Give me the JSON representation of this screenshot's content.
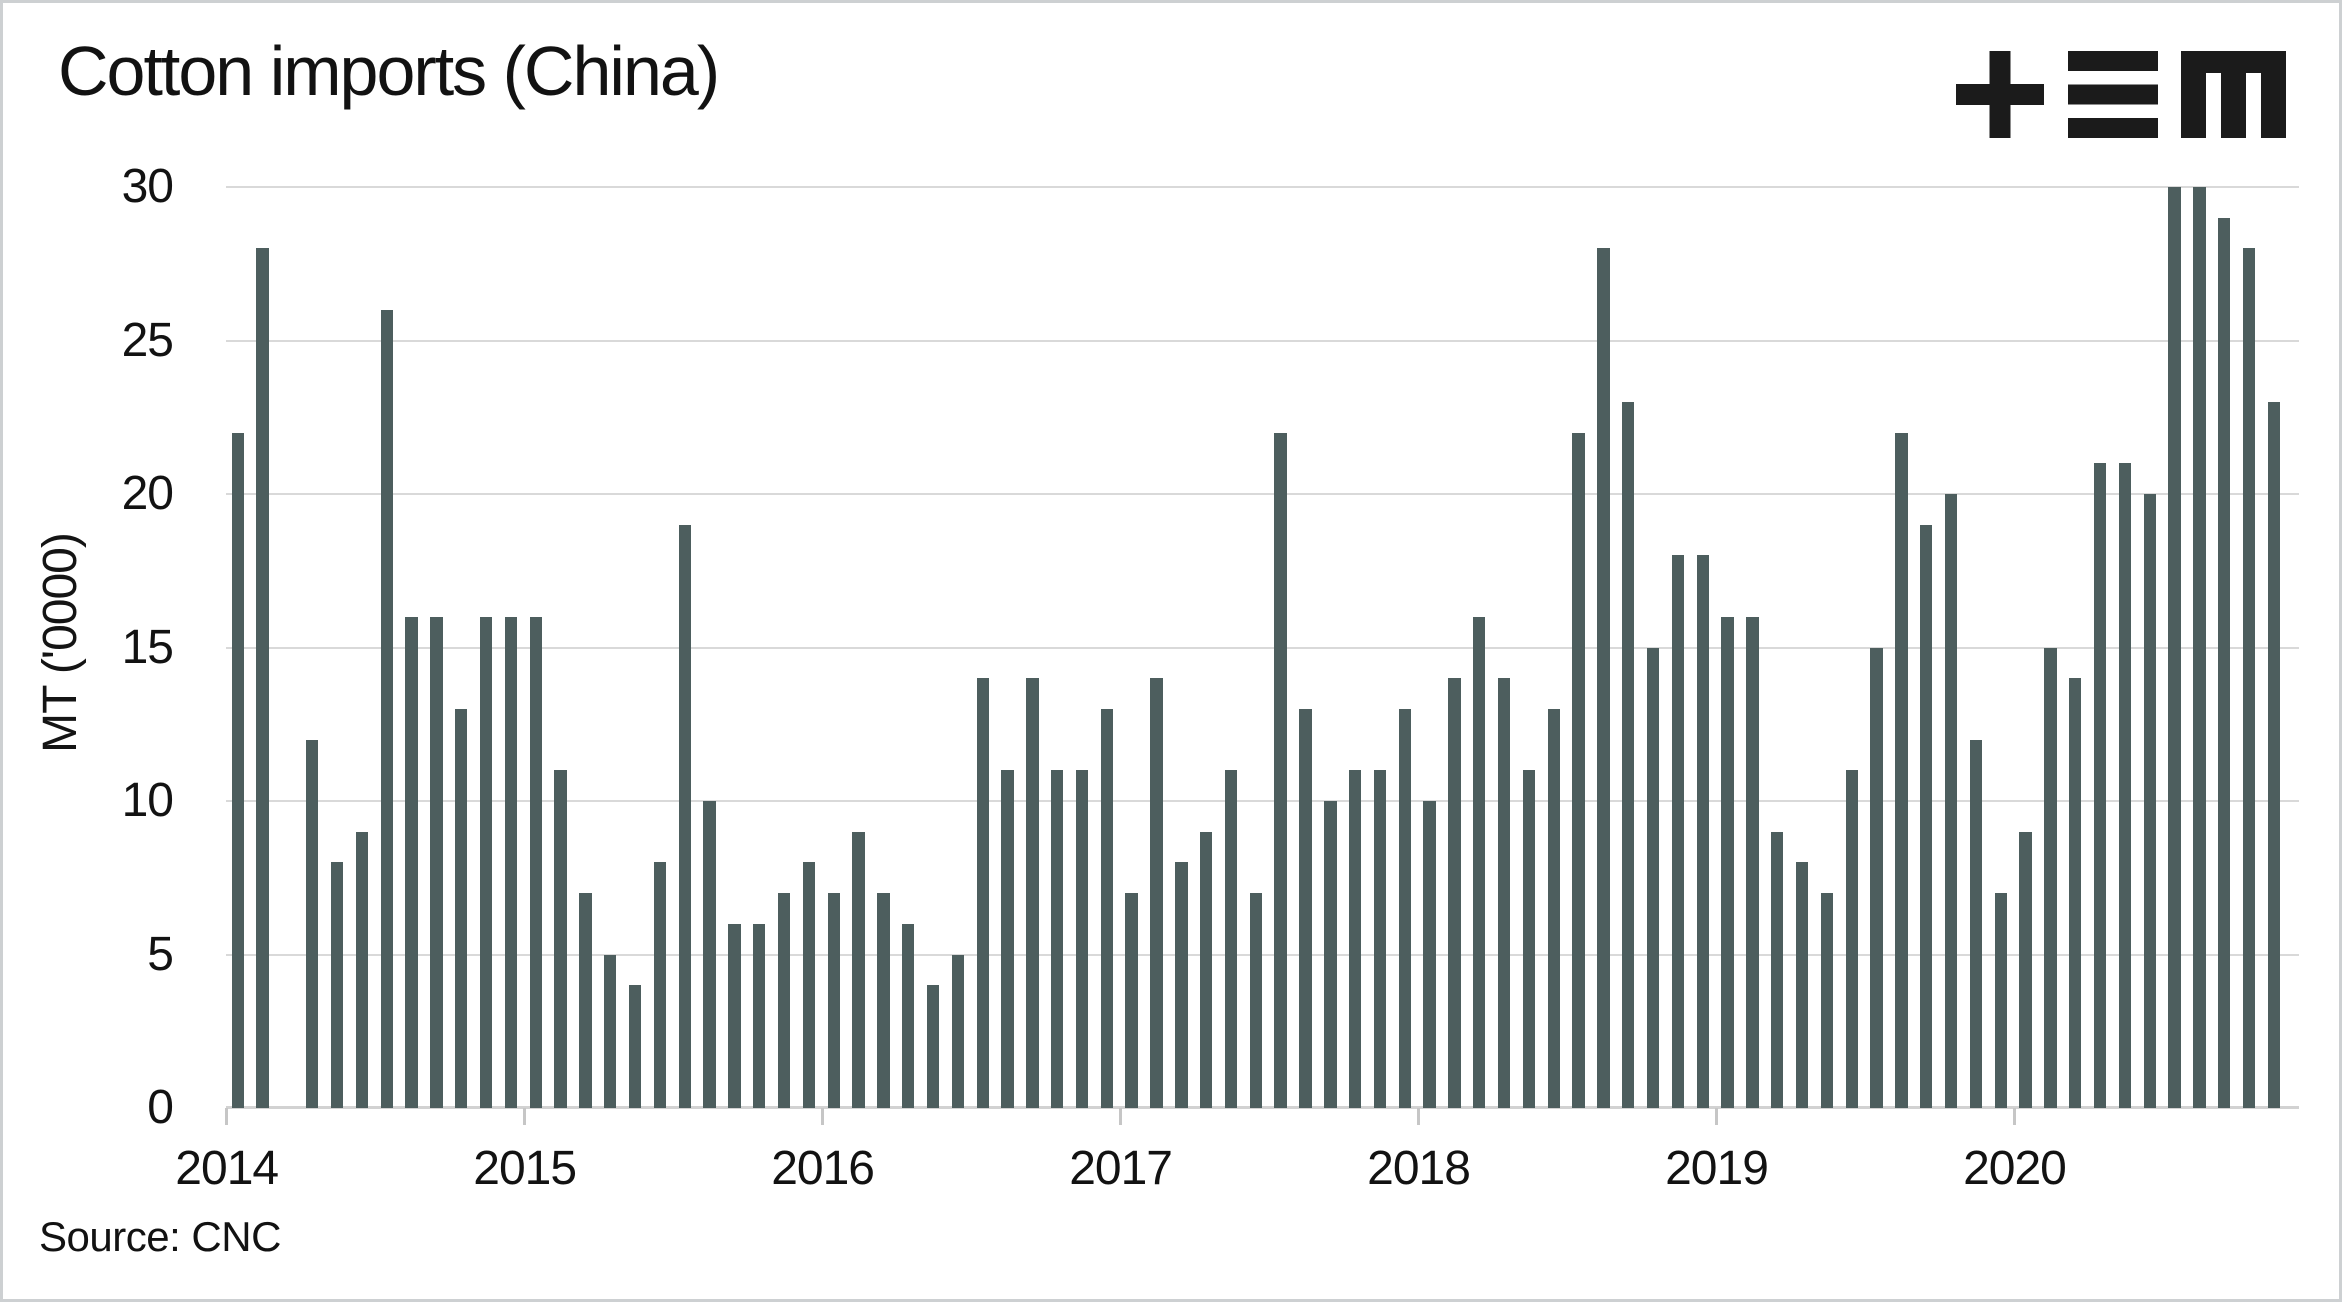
{
  "header": {
    "title": "Cotton imports (China)",
    "logo_name": "tem-logo"
  },
  "source_note": "Source: CNC",
  "colors": {
    "bar": "#4d5e5e",
    "grid": "#d9d9d9",
    "axis": "#d2d2d2",
    "text": "#121212",
    "logo": "#1b1b1b",
    "background": "#ffffff",
    "frame_border": "#cdd0d2"
  },
  "chart_data": {
    "type": "bar",
    "title": "Cotton imports (China)",
    "xlabel": "",
    "ylabel": "MT ('0000)",
    "ylim": [
      0,
      30
    ],
    "yticks": [
      0,
      5,
      10,
      15,
      20,
      25,
      30
    ],
    "grid": "horizontal",
    "legend": "none",
    "x_year_ticks": [
      "2014",
      "2015",
      "2016",
      "2017",
      "2018",
      "2019",
      "2020"
    ],
    "months": [
      "2014-01",
      "2014-02",
      "2014-03",
      "2014-04",
      "2014-05",
      "2014-06",
      "2014-07",
      "2014-08",
      "2014-09",
      "2014-10",
      "2014-11",
      "2014-12",
      "2015-01",
      "2015-02",
      "2015-03",
      "2015-04",
      "2015-05",
      "2015-06",
      "2015-07",
      "2015-08",
      "2015-09",
      "2015-10",
      "2015-11",
      "2015-12",
      "2016-01",
      "2016-02",
      "2016-03",
      "2016-04",
      "2016-05",
      "2016-06",
      "2016-07",
      "2016-08",
      "2016-09",
      "2016-10",
      "2016-11",
      "2016-12",
      "2017-01",
      "2017-02",
      "2017-03",
      "2017-04",
      "2017-05",
      "2017-06",
      "2017-07",
      "2017-08",
      "2017-09",
      "2017-10",
      "2017-11",
      "2017-12",
      "2018-01",
      "2018-02",
      "2018-03",
      "2018-04",
      "2018-05",
      "2018-06",
      "2018-07",
      "2018-08",
      "2018-09",
      "2018-10",
      "2018-11",
      "2018-12",
      "2019-01",
      "2019-02",
      "2019-03",
      "2019-04",
      "2019-05",
      "2019-06",
      "2019-07",
      "2019-08",
      "2019-09",
      "2019-10",
      "2019-11",
      "2019-12",
      "2020-01",
      "2020-02",
      "2020-03",
      "2020-04",
      "2020-05",
      "2020-06",
      "2020-07",
      "2020-08",
      "2020-09",
      "2020-10",
      "2020-11"
    ],
    "values": [
      22,
      28,
      0,
      12,
      8,
      9,
      26,
      16,
      16,
      13,
      16,
      16,
      16,
      11,
      7,
      5,
      4,
      8,
      19,
      10,
      6,
      6,
      7,
      8,
      7,
      9,
      7,
      6,
      4,
      5,
      14,
      11,
      14,
      11,
      11,
      13,
      7,
      14,
      8,
      9,
      11,
      7,
      22,
      13,
      10,
      11,
      11,
      13,
      10,
      14,
      16,
      14,
      11,
      13,
      22,
      28,
      23,
      15,
      18,
      18,
      16,
      16,
      9,
      8,
      7,
      11,
      15,
      22,
      19,
      20,
      12,
      7,
      9,
      15,
      14,
      21,
      21,
      20,
      30,
      30,
      29,
      28,
      23
    ]
  }
}
